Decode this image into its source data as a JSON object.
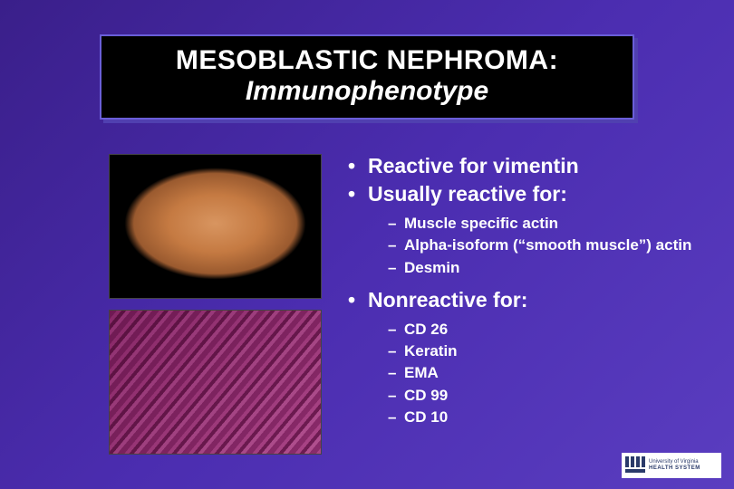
{
  "title": {
    "line1": "MESOBLASTIC NEPHROMA:",
    "line2": "Immunophenotype"
  },
  "bullets": {
    "reactive": "Reactive for vimentin",
    "usually": "Usually reactive for:",
    "usually_items": [
      "Muscle specific actin",
      "Alpha-isoform (“smooth muscle”) actin",
      "Desmin"
    ],
    "nonreactive": "Nonreactive for:",
    "nonreactive_items": [
      "CD 26",
      "Keratin",
      "EMA",
      "CD 99",
      "CD 10"
    ]
  },
  "logo": {
    "line1": "University of Virginia",
    "line2": "HEALTH SYSTEM"
  },
  "colors": {
    "bg_start": "#3a1f8a",
    "bg_end": "#5a3dc0",
    "title_bg": "#000000",
    "title_border": "#6a5ed8",
    "text": "#ffffff",
    "logo_bg": "#ffffff",
    "logo_fg": "#2a3a6a"
  },
  "typography": {
    "title_fontsize": 30,
    "bullet_l1_fontsize": 23,
    "bullet_l2_fontsize": 17,
    "font_family": "Arial"
  },
  "images": {
    "top": "gross-specimen-photo",
    "bottom": "histology-micrograph"
  }
}
